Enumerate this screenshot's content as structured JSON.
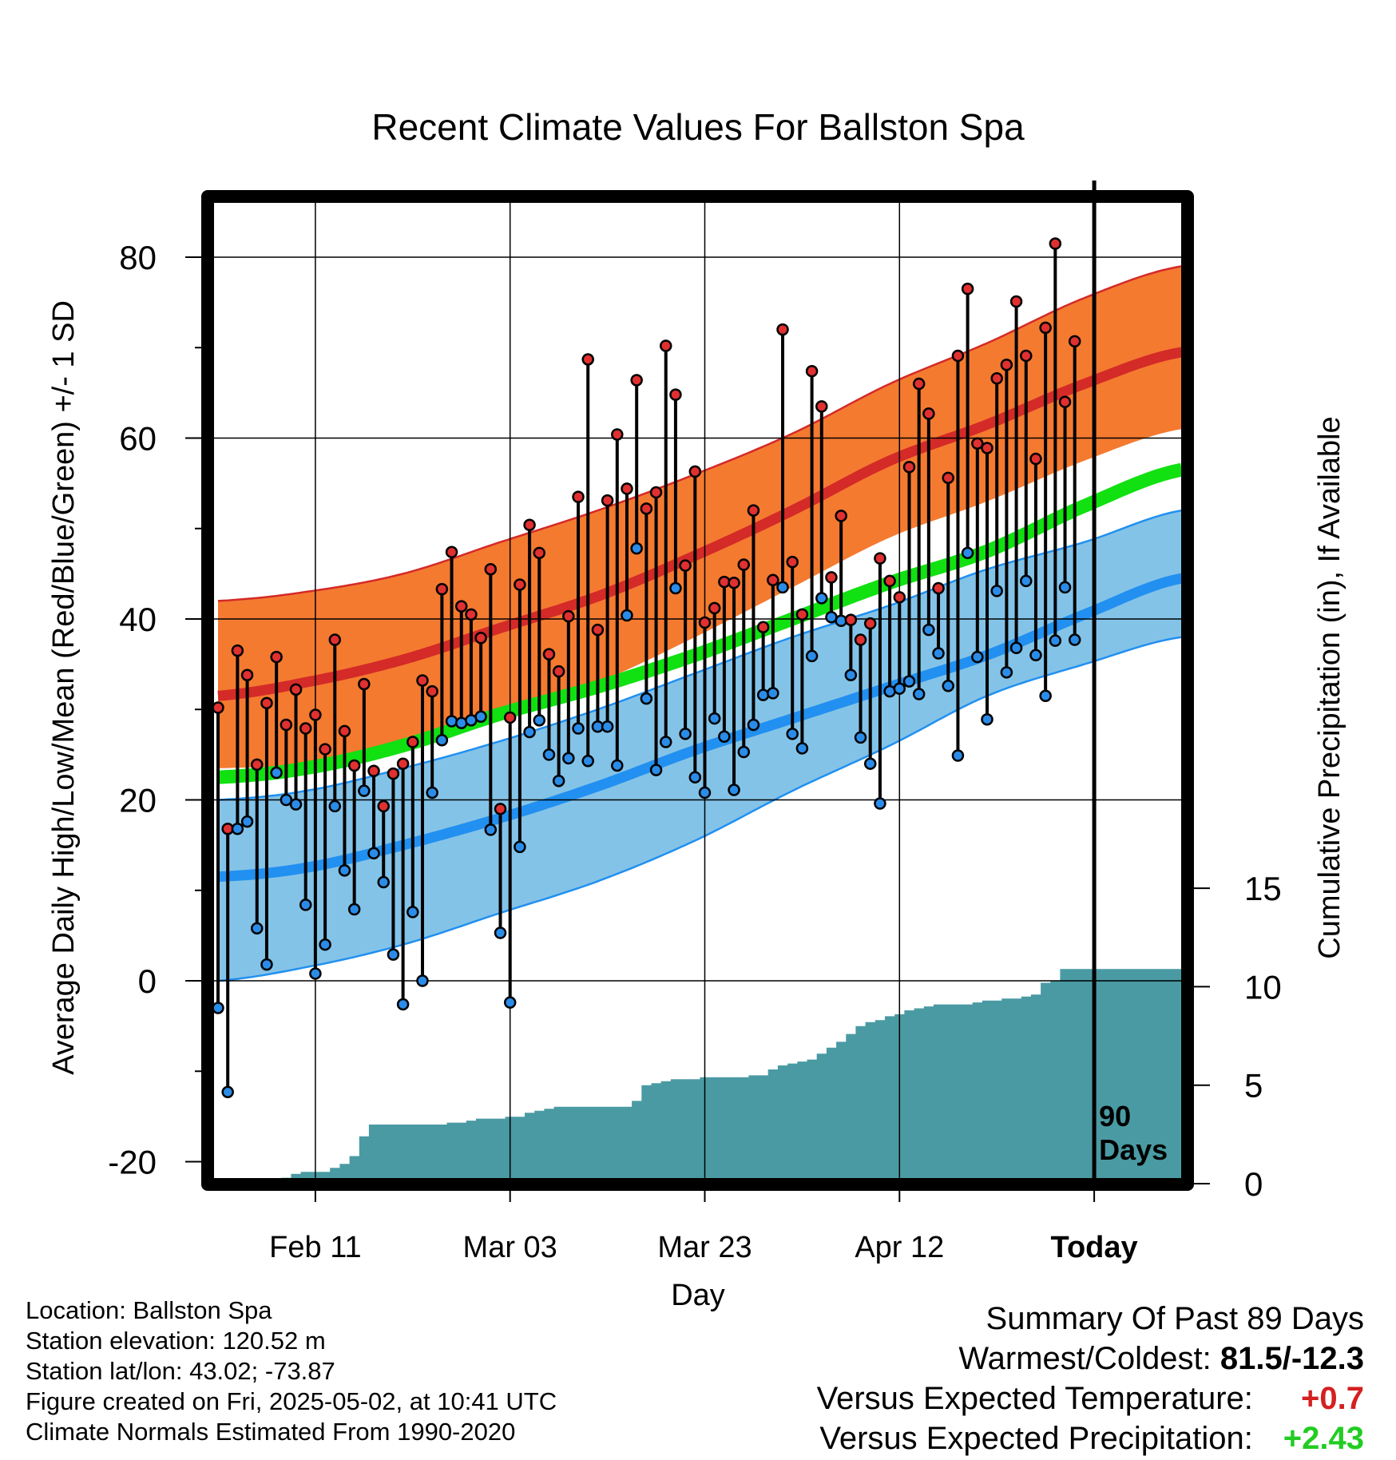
{
  "chart_data": {
    "type": "line",
    "title": "Recent Climate Values For Ballston Spa",
    "xlabel": "Day",
    "ylabel_left": "Average Daily High/Low/Mean (Red/Blue/Green) +/- 1 SD",
    "ylabel_right": "Cumulative Precipitation (in), If Available",
    "left_ticks": [
      "80",
      "60",
      "40",
      "20",
      "0",
      "-20"
    ],
    "right_ticks": [
      "15",
      "10",
      "5",
      "0"
    ],
    "x_ticks": [
      "Feb 11",
      "Mar 03",
      "Mar 23",
      "Apr 12",
      "Today"
    ],
    "today_marker_label": [
      "90",
      "Days"
    ],
    "ylim_left": [
      -22,
      87
    ],
    "ylim_right": [
      0,
      20
    ],
    "normals": {
      "days": [
        1,
        10,
        20,
        30,
        40,
        50,
        60,
        70,
        80,
        90,
        100
      ],
      "high_mean": [
        31.5,
        33,
        35.5,
        39,
        42.5,
        47,
        52,
        57.5,
        61.5,
        66,
        69.5
      ],
      "high_upper": [
        42,
        43,
        45,
        48.5,
        52,
        56,
        60.5,
        66,
        70.5,
        75.5,
        79
      ],
      "high_lower": [
        23.5,
        24,
        26,
        29.5,
        33,
        38,
        43.5,
        49,
        53,
        57.5,
        61
      ],
      "mean": [
        22.5,
        23.5,
        26,
        29.5,
        32.5,
        36,
        40,
        44,
        47.5,
        52.5,
        56.5
      ],
      "low_mean": [
        11.5,
        12.5,
        15,
        18,
        21.5,
        25.5,
        29,
        32.5,
        36,
        40.5,
        44.5
      ],
      "low_upper": [
        20,
        21,
        23.5,
        26.5,
        30,
        34,
        38,
        41.5,
        45.5,
        48.5,
        52
      ],
      "low_lower": [
        0,
        1.5,
        4,
        7.5,
        11,
        15.5,
        21,
        26,
        31.5,
        35,
        38
      ]
    },
    "daily_high": [
      30.2,
      16.8,
      36.5,
      33.8,
      23.9,
      30.7,
      35.8,
      28.3,
      32.2,
      27.9,
      29.4,
      25.6,
      37.7,
      27.6,
      23.8,
      32.8,
      23.2,
      19.3,
      22.9,
      24.0,
      26.4,
      33.2,
      32.0,
      43.3,
      47.4,
      41.4,
      40.5,
      37.9,
      45.5,
      19.0,
      29.1,
      43.8,
      50.4,
      47.3,
      36.1,
      34.2,
      40.3,
      53.5,
      68.7,
      38.8,
      53.1,
      60.4,
      54.4,
      66.4,
      52.2,
      54.0,
      70.2,
      64.8,
      45.9,
      56.3,
      39.6,
      41.2,
      44.1,
      44.0,
      46.0,
      52.0,
      39.1,
      44.3,
      72.0,
      46.3,
      40.5,
      67.4,
      63.5,
      44.6,
      51.4,
      39.9,
      37.7,
      39.5,
      46.7,
      44.2,
      42.4,
      56.8,
      66.0,
      62.7,
      43.4,
      55.6,
      69.1,
      76.5,
      59.4,
      58.9,
      66.6,
      68.1,
      75.1,
      69.1,
      57.7,
      72.2,
      81.5,
      64.0,
      70.7
    ],
    "daily_low": [
      -3.0,
      -12.3,
      16.8,
      17.6,
      5.8,
      1.8,
      23.0,
      20.0,
      19.5,
      8.4,
      0.8,
      4.0,
      19.3,
      12.2,
      7.9,
      21.0,
      14.1,
      10.9,
      2.9,
      -2.6,
      7.6,
      0.0,
      20.8,
      26.6,
      28.7,
      28.5,
      28.8,
      29.2,
      16.7,
      5.3,
      -2.4,
      14.8,
      27.5,
      28.8,
      25.0,
      22.1,
      24.6,
      27.9,
      24.3,
      28.1,
      28.1,
      23.8,
      40.4,
      47.8,
      31.2,
      23.3,
      26.4,
      43.4,
      27.3,
      22.5,
      20.8,
      29.0,
      27.0,
      21.1,
      25.3,
      28.3,
      31.6,
      31.8,
      43.5,
      27.3,
      25.7,
      35.9,
      42.3,
      40.2,
      39.8,
      33.8,
      26.9,
      24.0,
      19.6,
      32.0,
      32.3,
      33.1,
      31.7,
      38.8,
      36.2,
      32.6,
      24.9,
      47.3,
      35.8,
      28.9,
      43.1,
      34.1,
      36.8,
      44.2,
      36.0,
      31.5,
      37.6,
      43.5,
      37.7
    ],
    "cumulative_precip": [
      0.0,
      0.0,
      0.0,
      0.0,
      0.0,
      0.1,
      0.2,
      0.3,
      0.5,
      0.6,
      0.6,
      0.6,
      0.8,
      1.0,
      1.4,
      2.4,
      3.0,
      3.0,
      3.0,
      3.0,
      3.0,
      3.0,
      3.0,
      3.0,
      3.1,
      3.1,
      3.2,
      3.3,
      3.3,
      3.3,
      3.4,
      3.4,
      3.6,
      3.7,
      3.8,
      3.9,
      3.9,
      3.9,
      3.9,
      3.9,
      3.9,
      3.9,
      3.9,
      4.2,
      5.0,
      5.1,
      5.2,
      5.3,
      5.3,
      5.3,
      5.4,
      5.4,
      5.4,
      5.4,
      5.4,
      5.5,
      5.5,
      5.8,
      6.0,
      6.1,
      6.2,
      6.3,
      6.6,
      6.9,
      7.2,
      7.6,
      8.0,
      8.2,
      8.3,
      8.5,
      8.6,
      8.8,
      8.9,
      9.0,
      9.1,
      9.1,
      9.1,
      9.1,
      9.2,
      9.3,
      9.3,
      9.4,
      9.4,
      9.5,
      9.6,
      10.2,
      10.3,
      10.9,
      10.9
    ]
  },
  "info": {
    "location": "Location: Ballston Spa",
    "elevation": "Station elevation: 120.52 m",
    "latlon": "Station lat/lon: 43.02; -73.87",
    "created": "Figure created on Fri, 2025-05-02, at 10:41 UTC",
    "normals": "Climate Normals Estimated From 1990-2020"
  },
  "summary": {
    "heading": "Summary Of Past 89 Days",
    "warmest_label": "Warmest/Coldest:",
    "warmest_value": "81.5/-12.3",
    "temp_label": "Versus Expected Temperature:",
    "temp_value": "+0.7",
    "precip_label": "Versus Expected Precipitation:",
    "precip_value": "+2.43"
  },
  "colors": {
    "high_band": "#f47a30",
    "high_line": "#d42a28",
    "low_band": "#84c3e8",
    "low_line": "#2190f0",
    "mean_line": "#11e011",
    "precip": "#4a9aa3",
    "high_dot": "#e03030",
    "low_dot": "#2a8ce8"
  }
}
